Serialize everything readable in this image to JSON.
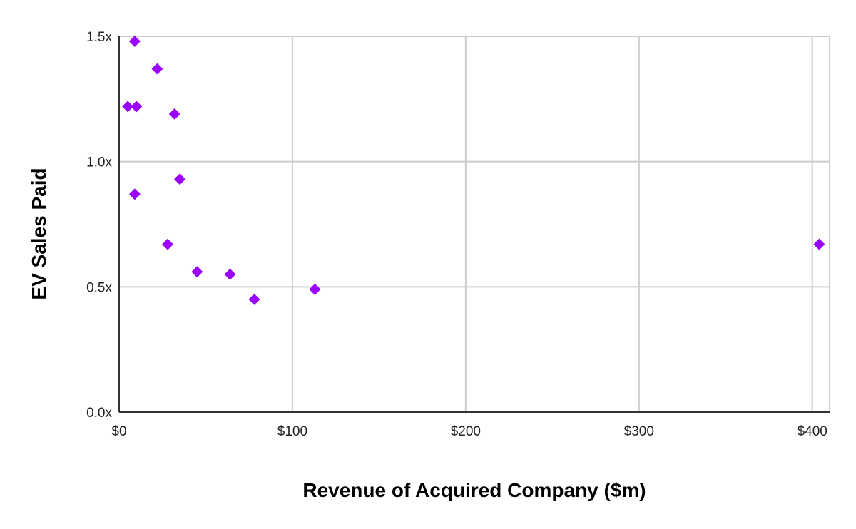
{
  "chart_data": {
    "type": "scatter",
    "xlabel": "Revenue of Acquired Company ($m)",
    "ylabel": "EV Sales Paid",
    "xlim": [
      0,
      410
    ],
    "ylim": [
      0,
      1.5
    ],
    "x_ticks": [
      0,
      100,
      200,
      300,
      400
    ],
    "x_tick_labels": [
      "$0",
      "$100",
      "$200",
      "$300",
      "$400"
    ],
    "y_ticks": [
      0,
      0.5,
      1.0,
      1.5
    ],
    "y_tick_labels": [
      "0.0x",
      "0.5x",
      "1.0x",
      "1.5x"
    ],
    "grid": true,
    "legend": "none",
    "marker": "diamond",
    "color": "#9900ff",
    "points": [
      {
        "x": 9,
        "y": 1.48
      },
      {
        "x": 22,
        "y": 1.37
      },
      {
        "x": 5,
        "y": 1.22
      },
      {
        "x": 10,
        "y": 1.22
      },
      {
        "x": 32,
        "y": 1.19
      },
      {
        "x": 35,
        "y": 0.93
      },
      {
        "x": 9,
        "y": 0.87
      },
      {
        "x": 28,
        "y": 0.67
      },
      {
        "x": 45,
        "y": 0.56
      },
      {
        "x": 64,
        "y": 0.55
      },
      {
        "x": 78,
        "y": 0.45
      },
      {
        "x": 113,
        "y": 0.49
      },
      {
        "x": 404,
        "y": 0.67
      }
    ]
  }
}
